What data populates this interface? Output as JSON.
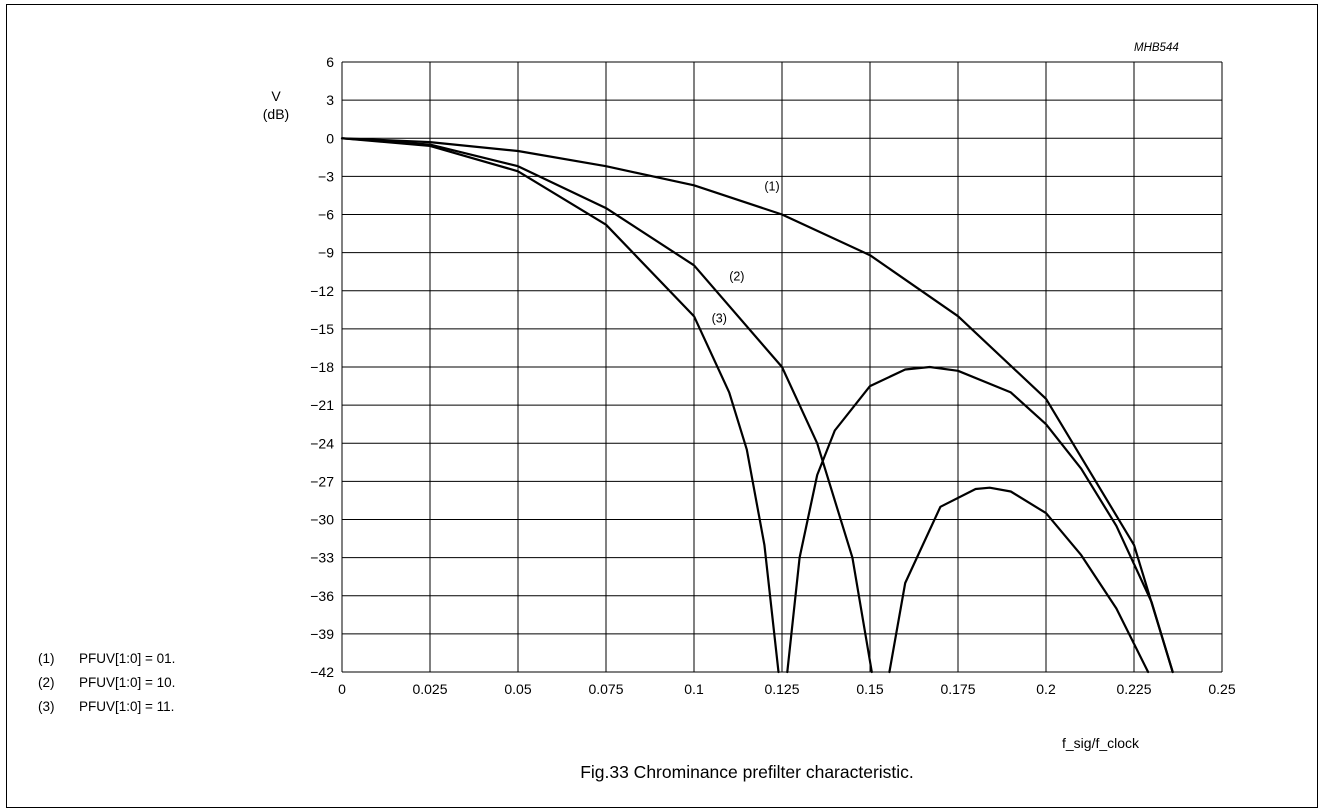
{
  "chart_data": {
    "type": "line",
    "figure_code": "MHB544",
    "caption": "Fig.33  Chrominance prefilter characteristic.",
    "ylabel_line1": "V",
    "ylabel_line2": "(dB)",
    "xlabel": "f_sig/f_clock",
    "xlim": [
      0,
      0.25
    ],
    "ylim": [
      -42,
      6
    ],
    "x_ticks": [
      "0",
      "0.025",
      "0.05",
      "0.075",
      "0.1",
      "0.125",
      "0.15",
      "0.175",
      "0.2",
      "0.225",
      "0.25"
    ],
    "y_ticks": [
      "6",
      "3",
      "0",
      "−3",
      "−6",
      "−9",
      "−12",
      "−15",
      "−18",
      "−21",
      "−24",
      "−27",
      "−30",
      "−33",
      "−36",
      "−39",
      "−42"
    ],
    "grid": true,
    "series": [
      {
        "name": "(1)",
        "label_at": [
          0.12,
          -4.1
        ],
        "x": [
          0,
          0.025,
          0.05,
          0.075,
          0.1,
          0.125,
          0.15,
          0.175,
          0.2,
          0.225,
          0.236
        ],
        "y": [
          0,
          -0.3,
          -1.0,
          -2.2,
          -3.7,
          -6.0,
          -9.2,
          -14.0,
          -20.5,
          -32.0,
          -42
        ]
      },
      {
        "name": "(2)",
        "label_at": [
          0.11,
          -11.2
        ],
        "x": [
          0,
          0.025,
          0.05,
          0.075,
          0.1,
          0.125,
          0.135,
          0.145,
          0.1505,
          null,
          0.1265,
          0.13,
          0.135,
          0.14,
          0.15,
          0.16,
          0.167,
          0.175,
          0.19,
          0.2,
          0.21,
          0.22,
          0.23,
          0.236
        ],
        "y": [
          0,
          -0.5,
          -2.2,
          -5.5,
          -10.0,
          -18.0,
          -24.0,
          -33.0,
          -42,
          null,
          -42,
          -33.0,
          -26.5,
          -23.0,
          -19.5,
          -18.2,
          -18.0,
          -18.3,
          -20.0,
          -22.5,
          -26.0,
          -30.5,
          -36.5,
          -42
        ]
      },
      {
        "name": "(3)",
        "label_at": [
          0.105,
          -14.5
        ],
        "x": [
          0,
          0.025,
          0.05,
          0.075,
          0.1,
          0.11,
          0.115,
          0.12,
          0.124,
          null,
          0.1555,
          0.16,
          0.17,
          0.18,
          0.184,
          0.19,
          0.2,
          0.21,
          0.22,
          0.229
        ],
        "y": [
          0,
          -0.6,
          -2.6,
          -6.8,
          -14.0,
          -20.0,
          -24.5,
          -32.0,
          -42,
          null,
          -42,
          -35.0,
          -29.0,
          -27.6,
          -27.5,
          -27.8,
          -29.5,
          -32.8,
          -37.0,
          -42
        ]
      }
    ]
  },
  "notes": [
    {
      "num": "(1)",
      "text": "PFUV[1:0] = 01."
    },
    {
      "num": "(2)",
      "text": "PFUV[1:0] = 10."
    },
    {
      "num": "(3)",
      "text": "PFUV[1:0] = 11."
    }
  ]
}
